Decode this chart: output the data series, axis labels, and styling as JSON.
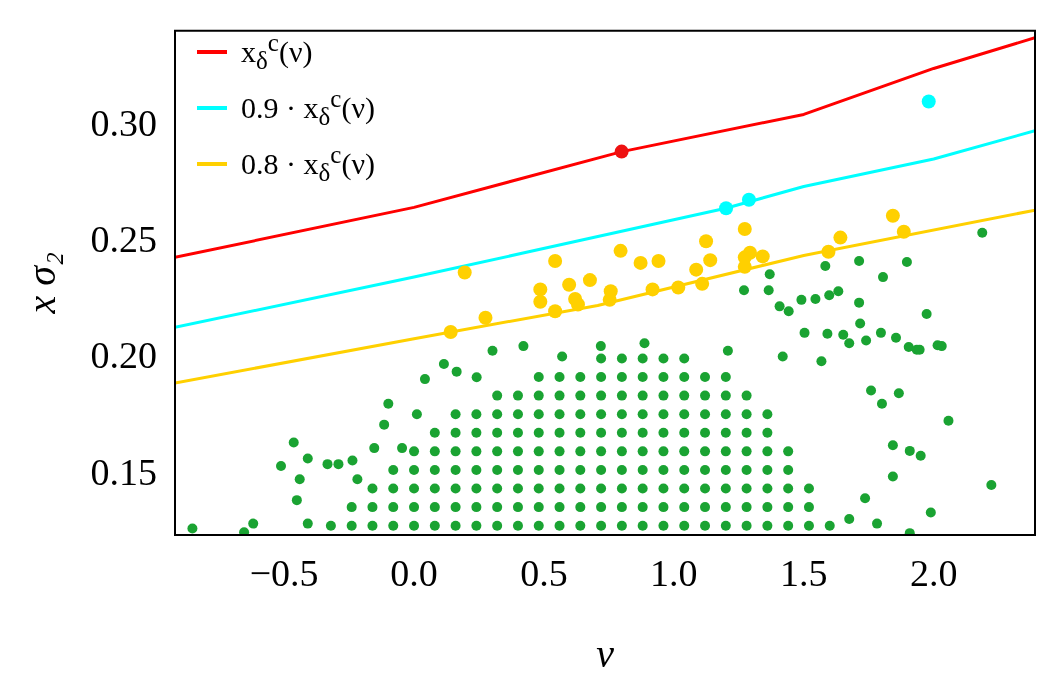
{
  "chart_data": {
    "type": "scatter",
    "xlabel": "ν",
    "ylabel": "x σ₂",
    "xlim": [
      -0.92,
      2.39
    ],
    "ylim": [
      0.124,
      0.341
    ],
    "xticks": [
      {
        "value": -0.5,
        "label": "−0.5"
      },
      {
        "value": 0,
        "label": "0.0"
      },
      0.5,
      {
        "value": 1,
        "label": "1.0"
      },
      1.5,
      {
        "value": 2,
        "label": "2.0"
      }
    ],
    "yticks": [
      0.15,
      {
        "value": 0.2,
        "label": "0.20"
      },
      0.25,
      {
        "value": 0.3,
        "label": "0.30"
      }
    ],
    "grid": false,
    "legend": "top left",
    "series": [
      {
        "marker": "circle",
        "color": "#1aa332",
        "x": [
          -0.32,
          -0.24,
          -0.16,
          -0.08,
          0,
          0.08,
          0.16,
          0.24,
          0.32,
          0.4,
          0.48,
          0.56,
          0.64,
          0.72,
          0.8,
          0.88,
          0.96,
          1.04,
          1.12,
          1.2,
          1.28,
          1.36,
          1.44,
          1.52,
          1.6,
          -0.24,
          -0.16,
          -0.08,
          0,
          0.08,
          0.16,
          0.24,
          0.32,
          0.4,
          0.48,
          0.56,
          0.64,
          0.72,
          0.8,
          0.88,
          0.96,
          1.04,
          1.12,
          1.2,
          1.28,
          1.36,
          1.44,
          1.52,
          -0.16,
          -0.08,
          0,
          0.08,
          0.16,
          0.24,
          0.32,
          0.4,
          0.48,
          0.56,
          0.64,
          0.72,
          0.8,
          0.88,
          0.96,
          1.04,
          1.12,
          1.2,
          1.28,
          1.36,
          1.44,
          1.52,
          -0.08,
          0,
          0.08,
          0.16,
          0.24,
          0.32,
          0.4,
          0.48,
          0.56,
          0.64,
          0.72,
          0.8,
          0.88,
          0.96,
          1.04,
          1.12,
          1.2,
          1.28,
          1.36,
          1.44,
          0,
          0.08,
          0.16,
          0.24,
          0.32,
          0.4,
          0.48,
          0.56,
          0.64,
          0.72,
          0.8,
          0.88,
          0.96,
          1.04,
          1.12,
          1.2,
          1.28,
          1.36,
          1.44,
          0.08,
          0.16,
          0.24,
          0.32,
          0.4,
          0.48,
          0.56,
          0.64,
          0.72,
          0.8,
          0.88,
          0.96,
          1.04,
          1.12,
          1.2,
          1.28,
          1.36,
          0.16,
          0.24,
          0.32,
          0.4,
          0.48,
          0.56,
          0.64,
          0.72,
          0.8,
          0.88,
          0.96,
          1.04,
          1.12,
          1.2,
          1.28,
          1.36,
          0.32,
          0.4,
          0.48,
          0.56,
          0.64,
          0.72,
          0.8,
          0.88,
          0.96,
          1.04,
          1.12,
          1.2,
          1.28,
          0.48,
          0.56,
          0.64,
          0.72,
          0.8,
          0.88,
          0.96,
          1.04,
          1.12,
          1.2,
          0.72,
          0.8,
          0.88,
          0.96,
          1.04,
          2.187,
          1.583,
          1.713,
          1.897,
          1.805,
          1.369,
          1.27,
          1.365,
          1.633,
          1.598,
          1.713,
          1.491,
          1.545,
          1.973,
          1.407,
          1.442,
          1.503,
          1.591,
          1.652,
          1.717,
          1.797,
          1.855,
          1.904,
          2.015,
          1.935,
          1.74,
          2.057,
          2.222,
          1.989,
          1.95,
          1.908,
          1.843,
          1.866,
          1.801,
          1.759,
          2.031,
          1.946,
          1.843,
          1.736,
          1.675,
          1.782,
          1.908,
          -0.853,
          -0.654,
          -0.619,
          -0.512,
          -0.463,
          -0.409,
          -0.44,
          -0.451,
          -0.409,
          -0.333,
          -0.291,
          -0.237,
          -0.218,
          -0.153,
          -0.099,
          -0.115,
          -0.046,
          0.011,
          0.042,
          0.115,
          0.164,
          0.241,
          0.302,
          0.421,
          0.57,
          0.719,
          0.887,
          1.208,
          1.419,
          1.568,
          1.675
        ],
        "values": [
          0.128,
          0.128,
          0.128,
          0.128,
          0.128,
          0.128,
          0.128,
          0.128,
          0.128,
          0.128,
          0.128,
          0.128,
          0.128,
          0.128,
          0.128,
          0.128,
          0.128,
          0.128,
          0.128,
          0.128,
          0.128,
          0.128,
          0.128,
          0.128,
          0.128,
          0.136,
          0.136,
          0.136,
          0.136,
          0.136,
          0.136,
          0.136,
          0.136,
          0.136,
          0.136,
          0.136,
          0.136,
          0.136,
          0.136,
          0.136,
          0.136,
          0.136,
          0.136,
          0.136,
          0.136,
          0.136,
          0.136,
          0.136,
          0.144,
          0.144,
          0.144,
          0.144,
          0.144,
          0.144,
          0.144,
          0.144,
          0.144,
          0.144,
          0.144,
          0.144,
          0.144,
          0.144,
          0.144,
          0.144,
          0.144,
          0.144,
          0.144,
          0.144,
          0.144,
          0.144,
          0.152,
          0.152,
          0.152,
          0.152,
          0.152,
          0.152,
          0.152,
          0.152,
          0.152,
          0.152,
          0.152,
          0.152,
          0.152,
          0.152,
          0.152,
          0.152,
          0.152,
          0.152,
          0.152,
          0.152,
          0.16,
          0.16,
          0.16,
          0.16,
          0.16,
          0.16,
          0.16,
          0.16,
          0.16,
          0.16,
          0.16,
          0.16,
          0.16,
          0.16,
          0.16,
          0.16,
          0.16,
          0.16,
          0.16,
          0.168,
          0.168,
          0.168,
          0.168,
          0.168,
          0.168,
          0.168,
          0.168,
          0.168,
          0.168,
          0.168,
          0.168,
          0.168,
          0.168,
          0.168,
          0.168,
          0.168,
          0.176,
          0.176,
          0.176,
          0.176,
          0.176,
          0.176,
          0.176,
          0.176,
          0.176,
          0.176,
          0.176,
          0.176,
          0.176,
          0.176,
          0.176,
          0.176,
          0.184,
          0.184,
          0.184,
          0.184,
          0.184,
          0.184,
          0.184,
          0.184,
          0.184,
          0.184,
          0.184,
          0.184,
          0.184,
          0.192,
          0.192,
          0.192,
          0.192,
          0.192,
          0.192,
          0.192,
          0.192,
          0.192,
          0.192,
          0.2,
          0.2,
          0.2,
          0.2,
          0.2,
          0.2541,
          0.2398,
          0.2419,
          0.2415,
          0.235,
          0.2362,
          0.2293,
          0.2293,
          0.2289,
          0.2272,
          0.224,
          0.2252,
          0.2256,
          0.2191,
          0.2224,
          0.2203,
          0.211,
          0.2106,
          0.2102,
          0.215,
          0.211,
          0.2089,
          0.2049,
          0.2057,
          0.2037,
          0.2077,
          0.1732,
          0.1455,
          0.1337,
          0.1581,
          0.1602,
          0.1626,
          0.185,
          0.1805,
          0.1862,
          0.2053,
          0.2037,
          0.1492,
          0.1398,
          0.1309,
          0.1289,
          0.1248,
          0.1268,
          0.1252,
          0.1289,
          0.1537,
          0.1638,
          0.1569,
          0.148,
          0.139,
          0.1289,
          0.1545,
          0.1545,
          0.1561,
          0.148,
          0.1614,
          0.1805,
          0.1715,
          0.1614,
          0.176,
          0.1911,
          0.1976,
          0.1943,
          0.1919,
          0.2033,
          0.2053,
          0.2008,
          0.2053,
          0.2065,
          0.2033,
          0.2008,
          0.1988,
          0.2065
        ]
      },
      {
        "type": "line",
        "marker": "none",
        "line_style": "solid",
        "name": "x$_{δ}$$^{c}$(ν)",
        "color": "#ff0000",
        "x": [
          -0.92,
          0,
          0.8,
          1.5,
          2,
          2.39
        ],
        "values": [
          0.2435,
          0.265,
          0.289,
          0.305,
          0.3248,
          0.338
        ]
      },
      {
        "type": "line",
        "marker": "none",
        "line_style": "solid",
        "name": "0.9 · x$_{δ}$$^{c}$(ν)",
        "color": "#00ffff",
        "x": [
          -0.92,
          0,
          1.2,
          1.5,
          2,
          2.39
        ],
        "values": [
          0.2134,
          0.235,
          0.2646,
          0.274,
          0.2858,
          0.298
        ]
      },
      {
        "type": "line",
        "marker": "none",
        "line_style": "solid",
        "name": "0.8 · x$_{δ}$$^{c}$(ν)",
        "color": "#ffd000",
        "x": [
          -0.92,
          0,
          0.707,
          1.5,
          2.39
        ],
        "values": [
          0.1894,
          0.2085,
          0.2228,
          0.2443,
          0.2638
        ]
      },
      {
        "type": "scatter",
        "marker": "circle",
        "color": "#ffd000",
        "x": [
          0.195,
          0.543,
          0.795,
          0.872,
          0.941,
          0.486,
          0.597,
          0.677,
          0.486,
          0.62,
          0.631,
          0.543,
          0.757,
          0.753,
          0.918,
          0.275,
          0.141,
          1.017,
          1.109,
          1.086,
          1.14,
          1.124,
          1.273,
          1.273,
          1.273,
          1.293,
          1.342,
          1.595,
          1.641,
          1.843,
          1.885
        ],
        "values": [
          0.237,
          0.2419,
          0.2463,
          0.2411,
          0.2419,
          0.2297,
          0.2317,
          0.2337,
          0.2244,
          0.2256,
          0.2232,
          0.2203,
          0.2289,
          0.2252,
          0.2297,
          0.2175,
          0.2114,
          0.2305,
          0.2321,
          0.2382,
          0.2423,
          0.2504,
          0.2557,
          0.2394,
          0.2435,
          0.2455,
          0.2439,
          0.2459,
          0.252,
          0.2614,
          0.2545
        ]
      },
      {
        "type": "scatter",
        "marker": "circle",
        "color": "#00ffff",
        "x": [
          1.981,
          1.201,
          1.289
        ],
        "values": [
          0.3106,
          0.2646,
          0.2683
        ]
      },
      {
        "type": "scatter",
        "marker": "circle",
        "color": "#ee1111",
        "x": [
          0.799
        ],
        "values": [
          0.289
        ]
      }
    ]
  }
}
